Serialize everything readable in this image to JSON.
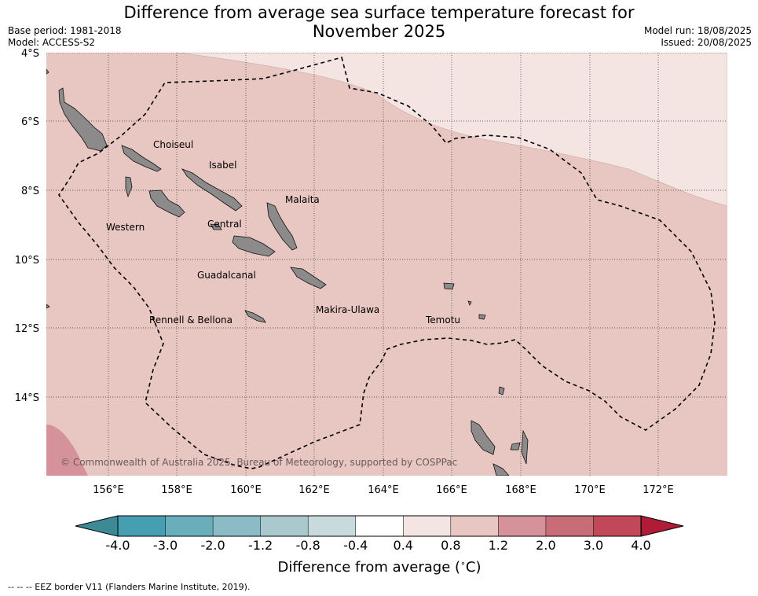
{
  "title_line1": "Difference from average sea surface temperature forecast for",
  "title_line2": "November 2025",
  "meta_left": [
    "Base period: 1981-2018",
    "Model: ACCESS-S2"
  ],
  "meta_right": [
    "Model run: 18/08/2025",
    "Issued: 20/08/2025"
  ],
  "lat_labels": [
    "4°S",
    "6°S",
    "8°S",
    "10°S",
    "12°S",
    "14°S"
  ],
  "lon_labels": [
    "156°E",
    "158°E",
    "160°E",
    "162°E",
    "164°E",
    "166°E",
    "168°E",
    "170°E",
    "172°E"
  ],
  "regions": [
    "Choiseul",
    "Isabel",
    "Malaita",
    "Western",
    "Central",
    "Guadalcanal",
    "Makira-Ulawa",
    "Rennell & Bellona",
    "Temotu"
  ],
  "copyright": "© Commonwealth of Australia 2025, Bureau of Meteorology, supported by COSPPac",
  "colorbar": {
    "label": "Difference from average ($^\\circ$C)",
    "label_text": "Difference from average (",
    "label_unit": "C)",
    "ticks": [
      "-4.0",
      "-3.0",
      "-2.0",
      "-1.2",
      "-0.8",
      "-0.4",
      "0.4",
      "0.8",
      "1.2",
      "2.0",
      "3.0",
      "4.0"
    ],
    "colors": [
      "#469fb0",
      "#6aaebb",
      "#8bbcc5",
      "#a9c9ce",
      "#c9dade",
      "#ffffff",
      "#f4e4e2",
      "#e8c6c1",
      "#d6929a",
      "#c86c78",
      "#c04858"
    ],
    "under_color": "#3d8a96",
    "over_color": "#b01c38"
  },
  "field_colors": {
    "light": "#f4e4e2",
    "main": "#e8c6c1",
    "warm": "#d6929a",
    "land": "#8c8a8a"
  },
  "footnote": "--  --  -- EEZ border V11 (Flanders Marine Institute, 2019)."
}
